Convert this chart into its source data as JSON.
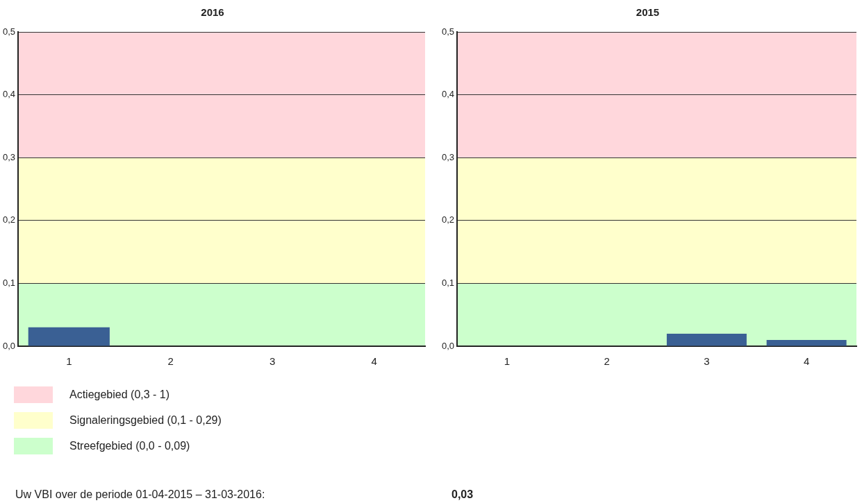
{
  "chart_data": [
    {
      "type": "bar",
      "title": "2016",
      "legend": "bottom left",
      "categories": [
        "1",
        "2",
        "3",
        "4"
      ],
      "values": [
        0.03,
        0,
        0,
        0
      ],
      "color": "#3a6094",
      "ylim": [
        0,
        0.5
      ],
      "yticks": [
        {
          "value": 0,
          "label": "0,0"
        },
        {
          "value": 0.1,
          "label": "0,1"
        },
        {
          "value": 0.2,
          "label": "0,2"
        },
        {
          "value": 0.3,
          "label": "0,3"
        },
        {
          "value": 0.4,
          "label": "0,4"
        },
        {
          "value": 0.5,
          "label": "0,5"
        }
      ],
      "grid": "y",
      "bands": [
        {
          "axis": "y",
          "from": 0.3,
          "to": 0.5,
          "label": "Actiegebied (0,3 - 1)",
          "color": "#ffd7dc"
        },
        {
          "axis": "y",
          "from": 0.1,
          "to": 0.3,
          "label": "Signaleringsgebied (0,1 - 0,29)",
          "color": "#ffffcc"
        },
        {
          "axis": "y",
          "from": 0,
          "to": 0.1,
          "label": "Streefgebied (0,0 - 0,09)",
          "color": "#ccffcc"
        }
      ],
      "annotations": [
        "Uw VBI over de periode 01-04-2015 – 31-03-2016:",
        "0,03"
      ]
    },
    {
      "type": "bar",
      "title": "2015",
      "categories": [
        "1",
        "2",
        "3",
        "4"
      ],
      "values": [
        0,
        0,
        0.02,
        0.01
      ],
      "color": "#3a6094",
      "ylim": [
        0,
        0.5
      ],
      "yticks": [
        {
          "value": 0,
          "label": "0,0"
        },
        {
          "value": 0.1,
          "label": "0,1"
        },
        {
          "value": 0.2,
          "label": "0,2"
        },
        {
          "value": 0.3,
          "label": "0,3"
        },
        {
          "value": 0.4,
          "label": "0,4"
        },
        {
          "value": 0.5,
          "label": "0,5"
        }
      ],
      "grid": "y",
      "bands": [
        {
          "axis": "y",
          "from": 0.3,
          "to": 0.5,
          "color": "#ffd7dc"
        },
        {
          "axis": "y",
          "from": 0.1,
          "to": 0.3,
          "color": "#ffffcc"
        },
        {
          "axis": "y",
          "from": 0,
          "to": 0.1,
          "color": "#ccffcc"
        }
      ]
    }
  ]
}
